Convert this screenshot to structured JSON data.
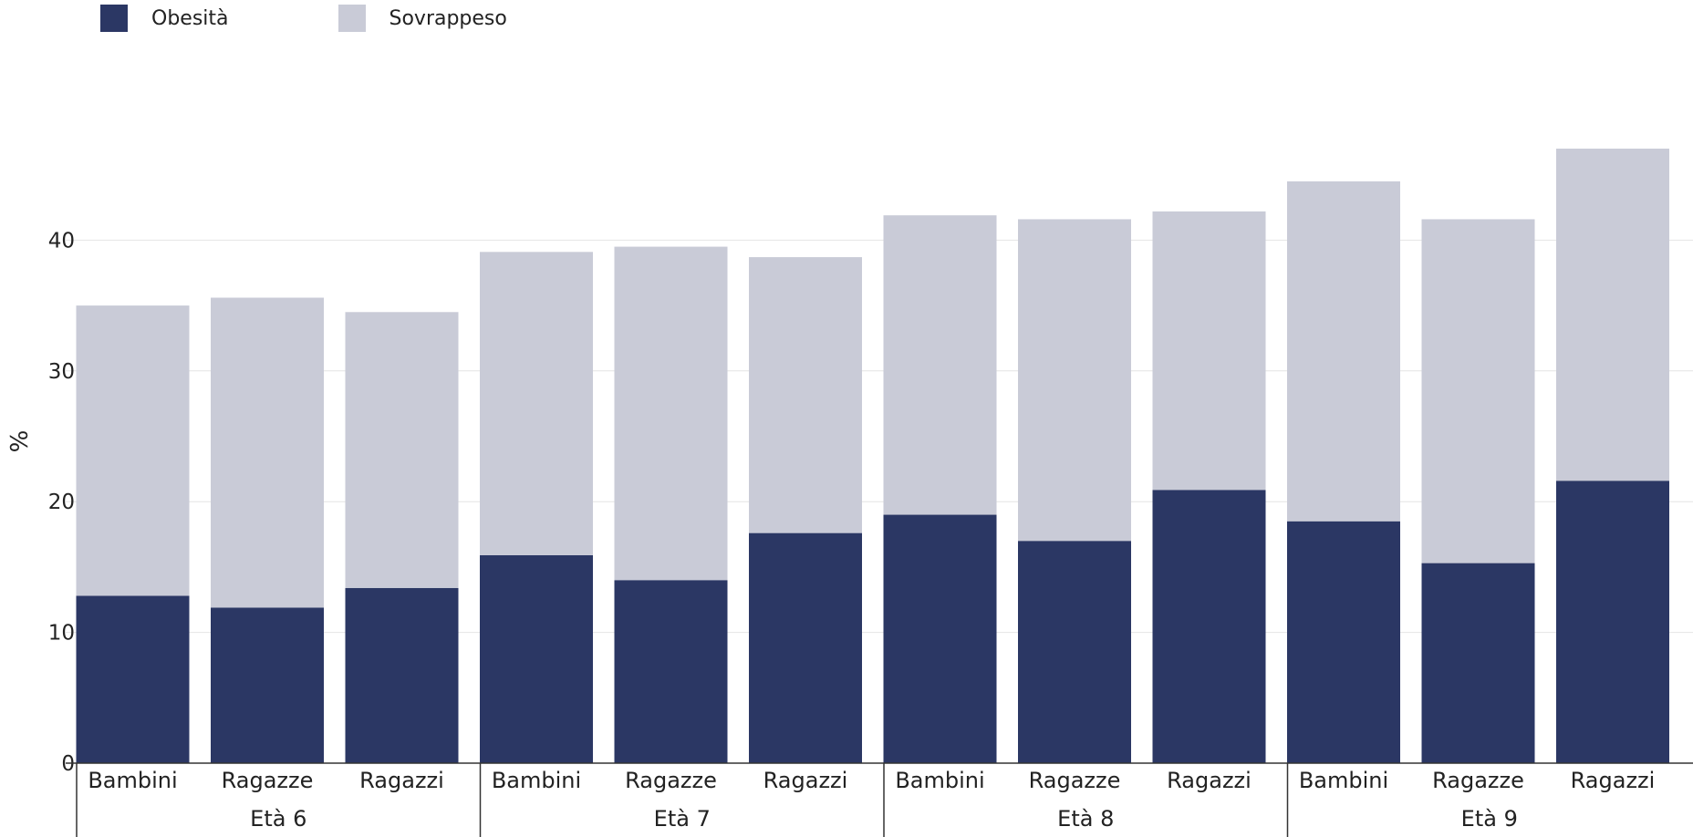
{
  "chart_data": {
    "type": "bar",
    "stacked": true,
    "title": "",
    "xlabel": "",
    "ylabel": "%",
    "ylim": [
      0,
      48
    ],
    "yticks": [
      0,
      10,
      20,
      30,
      40
    ],
    "grid": "horizontal",
    "legend_position": "top-left",
    "groups": [
      {
        "label": "Età 6",
        "categories": [
          "Bambini",
          "Ragazze",
          "Ragazzi"
        ]
      },
      {
        "label": "Età 7",
        "categories": [
          "Bambini",
          "Ragazze",
          "Ragazzi"
        ]
      },
      {
        "label": "Età 8",
        "categories": [
          "Bambini",
          "Ragazze",
          "Ragazzi"
        ]
      },
      {
        "label": "Età 9",
        "categories": [
          "Bambini",
          "Ragazze",
          "Ragazzi"
        ]
      }
    ],
    "series": [
      {
        "name": "Obesità",
        "color": "#2b3764",
        "values": [
          12.8,
          11.9,
          13.4,
          15.9,
          14.0,
          17.6,
          19.0,
          17.0,
          20.9,
          18.5,
          15.3,
          21.6
        ]
      },
      {
        "name": "Sovrappeso",
        "color": "#c9cbd7",
        "values": [
          22.2,
          23.7,
          21.1,
          23.2,
          25.5,
          21.1,
          22.9,
          24.6,
          21.3,
          26.0,
          26.3,
          25.4
        ]
      }
    ]
  }
}
